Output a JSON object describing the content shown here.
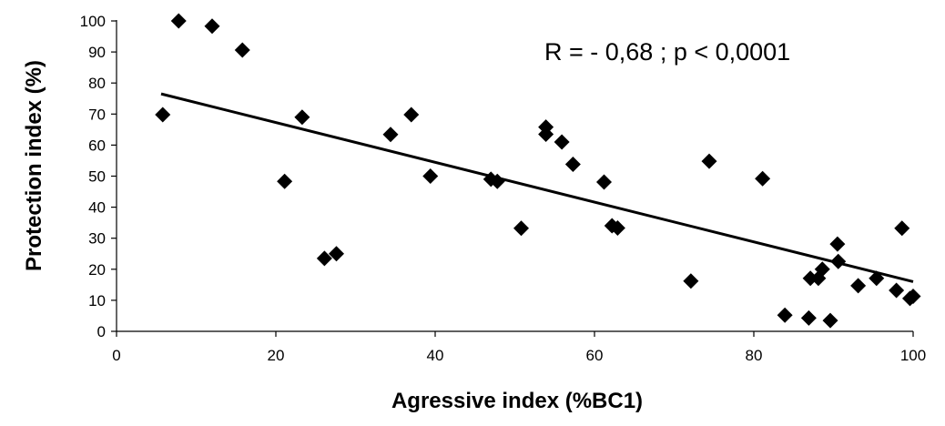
{
  "chart_data": {
    "type": "scatter",
    "title": "",
    "xlabel": "Agressive index (%BC1)",
    "ylabel": "Protection index (%)",
    "xlim": [
      0,
      100
    ],
    "ylim": [
      0,
      100
    ],
    "xticks": [
      "0",
      "20",
      "40",
      "60",
      "80",
      "100"
    ],
    "yticks": [
      "0",
      "10",
      "20",
      "30",
      "40",
      "50",
      "60",
      "70",
      "80",
      "90",
      "100"
    ],
    "grid": false,
    "legend": "none",
    "annotation": "R = - 0,68 ; p < 0,0001",
    "marker_color": "#000000",
    "marker_shape": "diamond",
    "points": [
      {
        "x": 5.8,
        "y": 69.8
      },
      {
        "x": 7.8,
        "y": 100
      },
      {
        "x": 12.0,
        "y": 98.3
      },
      {
        "x": 15.8,
        "y": 90.6
      },
      {
        "x": 21.1,
        "y": 48.3
      },
      {
        "x": 23.3,
        "y": 69.0
      },
      {
        "x": 26.1,
        "y": 23.5
      },
      {
        "x": 27.6,
        "y": 25.0
      },
      {
        "x": 34.4,
        "y": 63.4
      },
      {
        "x": 37.0,
        "y": 69.8
      },
      {
        "x": 39.4,
        "y": 50.0
      },
      {
        "x": 47.0,
        "y": 49.0
      },
      {
        "x": 47.8,
        "y": 48.3
      },
      {
        "x": 50.8,
        "y": 33.2
      },
      {
        "x": 53.9,
        "y": 65.8
      },
      {
        "x": 53.9,
        "y": 63.5
      },
      {
        "x": 55.9,
        "y": 61.0
      },
      {
        "x": 57.3,
        "y": 53.8
      },
      {
        "x": 61.2,
        "y": 48.1
      },
      {
        "x": 62.2,
        "y": 34.0
      },
      {
        "x": 62.9,
        "y": 33.3
      },
      {
        "x": 72.1,
        "y": 16.2
      },
      {
        "x": 74.4,
        "y": 54.8
      },
      {
        "x": 81.1,
        "y": 49.2
      },
      {
        "x": 83.9,
        "y": 5.2
      },
      {
        "x": 86.9,
        "y": 4.3
      },
      {
        "x": 87.1,
        "y": 17.1
      },
      {
        "x": 88.1,
        "y": 17.1
      },
      {
        "x": 88.6,
        "y": 20.0
      },
      {
        "x": 89.6,
        "y": 3.5
      },
      {
        "x": 90.5,
        "y": 28.1
      },
      {
        "x": 90.6,
        "y": 22.5
      },
      {
        "x": 93.1,
        "y": 14.7
      },
      {
        "x": 95.4,
        "y": 17.1
      },
      {
        "x": 97.9,
        "y": 13.2
      },
      {
        "x": 98.6,
        "y": 33.2
      },
      {
        "x": 99.6,
        "y": 10.6
      },
      {
        "x": 100.0,
        "y": 11.3
      }
    ],
    "trendline": {
      "x": [
        5.6,
        100
      ],
      "y": [
        76.5,
        16.0
      ]
    }
  }
}
